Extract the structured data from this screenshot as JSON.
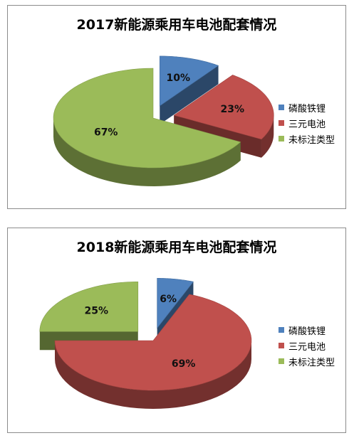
{
  "chart_data": [
    {
      "type": "pie",
      "title": "2017新能源乘用车电池配套情况",
      "labels": [
        "磷酸铁锂",
        "三元电池",
        "未标注类型"
      ],
      "values": [
        10,
        23,
        67
      ],
      "value_labels": [
        "10%",
        "23%",
        "67%"
      ],
      "colors": [
        "#4f81bd",
        "#c0504d",
        "#9bbb59"
      ],
      "legend": "right"
    },
    {
      "type": "pie",
      "title": "2018新能源乘用车电池配套情况",
      "labels": [
        "磷酸铁锂",
        "三元电池",
        "未标注类型"
      ],
      "values": [
        6,
        69,
        25
      ],
      "value_labels": [
        "6%",
        "69%",
        "25%"
      ],
      "colors": [
        "#4f81bd",
        "#c0504d",
        "#9bbb59"
      ],
      "legend": "right"
    }
  ]
}
